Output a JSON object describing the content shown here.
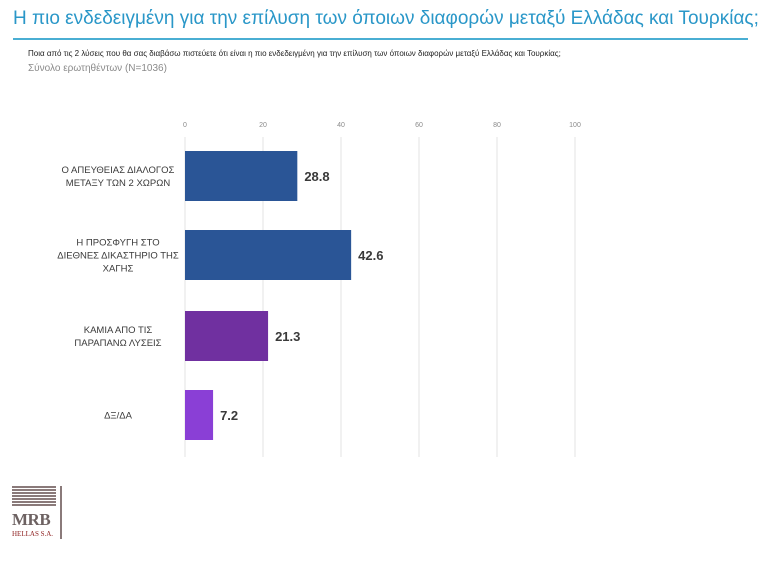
{
  "header": {
    "title": "Η πιο ενδεδειγμένη για την επίλυση των όποιων διαφορών μεταξύ Ελλάδας και Τουρκίας;",
    "subtitle": "Ποια από τις 2 λύσεις που θα σας διαβάσω πιστεύετε ότι είναι η πιο ενδεδειγμένη για την επίλυση των όποιων διαφορών μεταξύ Ελλάδας και Τουρκίας;",
    "base": "Σύνολο ερωτηθέντων (N=1036)"
  },
  "chart_data": {
    "type": "bar",
    "orientation": "horizontal",
    "categories": [
      [
        "Ο ΑΠΕΥΘΕΙΑΣ ΔΙΑΛΟΓΟΣ",
        "ΜΕΤΑΞΥ ΤΩΝ 2 ΧΩΡΩΝ"
      ],
      [
        "Η ΠΡΟΣΦΥΓΗ ΣΤΟ",
        "ΔΙΕΘΝΕΣ ΔΙΚΑΣΤΗΡΙΟ ΤΗΣ",
        "ΧΑΓΗΣ"
      ],
      [
        "ΚΑΜΙΑ ΑΠΟ ΤΙΣ",
        "ΠΑΡΑΠΑΝΩ ΛΥΣΕΙΣ"
      ],
      [
        "ΔΞ/ΔΑ"
      ]
    ],
    "values": [
      28.8,
      42.6,
      21.3,
      7.2
    ],
    "value_labels": [
      "28.8",
      "42.6",
      "21.3",
      "7.2"
    ],
    "bar_colors": [
      "#2a5596",
      "#2a5596",
      "#7030a0",
      "#8a3fd6"
    ],
    "xlim": [
      0,
      100
    ],
    "xticks": [
      0,
      20,
      40,
      60,
      80,
      100
    ],
    "xtick_labels": [
      "0",
      "20",
      "40",
      "60",
      "80",
      "100"
    ],
    "x_axis_position": "top",
    "grid": true,
    "legend": "none"
  },
  "logo": {
    "name": "MRB",
    "tagline": "HELLAS S.A."
  }
}
